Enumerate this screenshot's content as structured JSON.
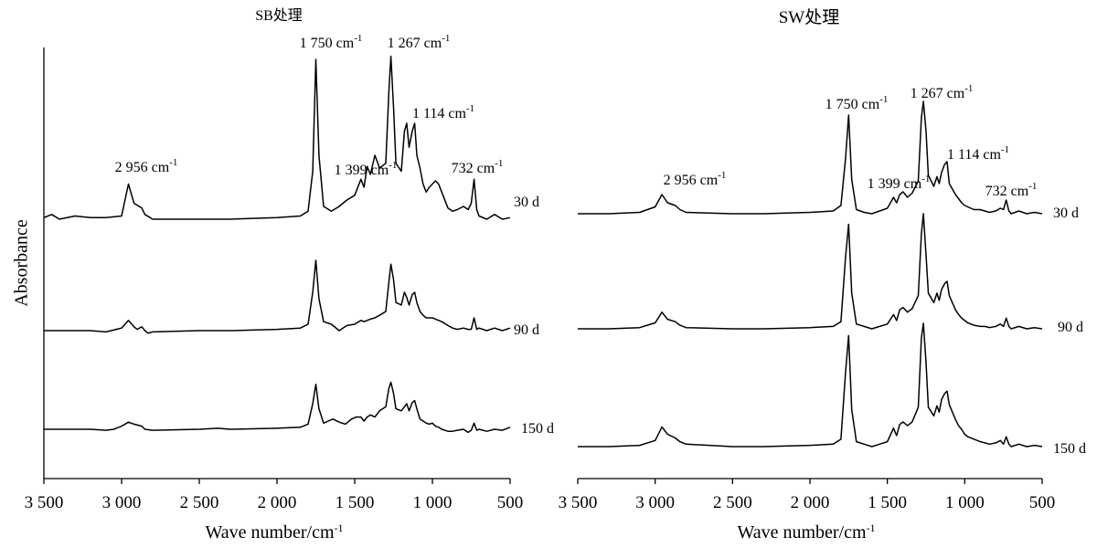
{
  "figure": {
    "ylabel": "Absorbance"
  },
  "chart_data": [
    {
      "type": "line",
      "title": "SB处理",
      "xlabel": "Wave number/cm-1",
      "ylabel": "Absorbance",
      "xlim": [
        3500,
        500
      ],
      "x_reversed": true,
      "x_ticks": [
        {
          "v": 3500,
          "label": "3 500"
        },
        {
          "v": 3000,
          "label": "3 000"
        },
        {
          "v": 2500,
          "label": "2 500"
        },
        {
          "v": 2000,
          "label": "2 000"
        },
        {
          "v": 1500,
          "label": "1 500"
        },
        {
          "v": 1000,
          "label": "1 000"
        },
        {
          "v": 500,
          "label": "500"
        }
      ],
      "annotations": [
        {
          "text": "2 956 cm",
          "sup": "-1",
          "x": 2956,
          "series": "30 d"
        },
        {
          "text": "1 750 cm",
          "sup": "-1",
          "x": 1750,
          "series": "30 d"
        },
        {
          "text": "1 267 cm",
          "sup": "-1",
          "x": 1267,
          "series": "30 d"
        },
        {
          "text": "1 114 cm",
          "sup": "-1",
          "x": 1114,
          "series": "30 d"
        },
        {
          "text": "1 399 cm",
          "sup": "-1",
          "x": 1399,
          "series": "30 d"
        },
        {
          "text": "732 cm",
          "sup": "-1",
          "x": 732,
          "series": "30 d"
        }
      ],
      "series": [
        {
          "name": "30 d",
          "x": [
            3500,
            3450,
            3400,
            3300,
            3200,
            3100,
            3000,
            2956,
            2920,
            2870,
            2850,
            2800,
            2500,
            2300,
            2000,
            1850,
            1800,
            1770,
            1750,
            1730,
            1700,
            1650,
            1600,
            1550,
            1500,
            1460,
            1440,
            1420,
            1399,
            1370,
            1340,
            1300,
            1280,
            1267,
            1250,
            1235,
            1200,
            1180,
            1165,
            1150,
            1130,
            1114,
            1100,
            1080,
            1060,
            1040,
            1020,
            1000,
            980,
            960,
            940,
            900,
            870,
            840,
            800,
            770,
            750,
            732,
            715,
            700,
            650,
            600,
            550,
            500
          ],
          "y": [
            0.01,
            0.03,
            0.0,
            0.02,
            0.01,
            0.01,
            0.02,
            0.22,
            0.1,
            0.07,
            0.03,
            0.0,
            0.0,
            0.0,
            0.01,
            0.02,
            0.05,
            0.3,
            1.0,
            0.4,
            0.08,
            0.05,
            0.08,
            0.12,
            0.15,
            0.25,
            0.2,
            0.33,
            0.28,
            0.4,
            0.32,
            0.35,
            0.8,
            1.02,
            0.7,
            0.35,
            0.3,
            0.55,
            0.6,
            0.45,
            0.55,
            0.6,
            0.4,
            0.32,
            0.22,
            0.17,
            0.2,
            0.22,
            0.24,
            0.22,
            0.17,
            0.07,
            0.05,
            0.06,
            0.08,
            0.06,
            0.1,
            0.25,
            0.06,
            0.02,
            0.0,
            0.03,
            0.0,
            0.01
          ]
        },
        {
          "name": "90 d",
          "x": [
            3500,
            3400,
            3300,
            3200,
            3100,
            3000,
            2956,
            2920,
            2900,
            2870,
            2850,
            2830,
            2800,
            2500,
            2300,
            2000,
            1850,
            1800,
            1770,
            1750,
            1730,
            1700,
            1650,
            1600,
            1550,
            1500,
            1460,
            1440,
            1420,
            1399,
            1370,
            1340,
            1300,
            1280,
            1267,
            1250,
            1235,
            1200,
            1180,
            1165,
            1150,
            1130,
            1114,
            1100,
            1080,
            1060,
            1040,
            1020,
            1000,
            980,
            960,
            940,
            900,
            870,
            840,
            800,
            770,
            750,
            732,
            715,
            700,
            650,
            600,
            550,
            500
          ],
          "y": [
            0.0,
            0.0,
            0.0,
            0.0,
            -0.01,
            0.02,
            0.08,
            0.03,
            0.01,
            0.03,
            0.0,
            -0.02,
            -0.01,
            0.0,
            0.0,
            0.01,
            0.02,
            0.05,
            0.3,
            0.55,
            0.25,
            0.07,
            0.05,
            0.0,
            0.04,
            0.05,
            0.08,
            0.07,
            0.08,
            0.09,
            0.1,
            0.12,
            0.15,
            0.38,
            0.52,
            0.4,
            0.22,
            0.2,
            0.3,
            0.26,
            0.2,
            0.28,
            0.3,
            0.22,
            0.15,
            0.12,
            0.1,
            0.1,
            0.1,
            0.09,
            0.08,
            0.07,
            0.04,
            0.02,
            0.01,
            0.02,
            0.01,
            0.01,
            0.1,
            0.01,
            0.02,
            0.0,
            0.02,
            0.0,
            0.02
          ]
        },
        {
          "name": "150 d",
          "x": [
            3500,
            3400,
            3300,
            3200,
            3100,
            3050,
            3000,
            2956,
            2920,
            2870,
            2850,
            2800,
            2500,
            2380,
            2300,
            2000,
            1850,
            1800,
            1770,
            1750,
            1730,
            1700,
            1670,
            1640,
            1600,
            1560,
            1520,
            1490,
            1460,
            1440,
            1420,
            1399,
            1370,
            1340,
            1300,
            1280,
            1267,
            1250,
            1235,
            1200,
            1180,
            1165,
            1150,
            1130,
            1114,
            1100,
            1080,
            1060,
            1040,
            1020,
            1000,
            980,
            960,
            940,
            900,
            870,
            840,
            800,
            770,
            750,
            732,
            715,
            700,
            650,
            600,
            550,
            500
          ],
          "y": [
            0.0,
            0.0,
            0.0,
            0.0,
            -0.01,
            0.0,
            0.03,
            0.07,
            0.05,
            0.03,
            0.0,
            -0.01,
            0.0,
            0.01,
            0.0,
            0.01,
            0.02,
            0.05,
            0.25,
            0.44,
            0.2,
            0.06,
            0.08,
            0.1,
            0.07,
            0.05,
            0.1,
            0.12,
            0.12,
            0.08,
            0.12,
            0.14,
            0.12,
            0.18,
            0.22,
            0.4,
            0.46,
            0.35,
            0.2,
            0.18,
            0.22,
            0.25,
            0.18,
            0.26,
            0.28,
            0.2,
            0.1,
            0.08,
            0.06,
            0.05,
            0.06,
            0.03,
            0.02,
            0.0,
            -0.02,
            -0.02,
            -0.01,
            0.0,
            -0.03,
            -0.01,
            0.06,
            -0.01,
            0.0,
            -0.02,
            0.0,
            -0.01,
            0.02
          ]
        }
      ]
    },
    {
      "type": "line",
      "title": "SW处理",
      "xlabel": "Wave number/cm-1",
      "xlim": [
        3500,
        500
      ],
      "x_reversed": true,
      "x_ticks": [
        {
          "v": 3500,
          "label": "3 500"
        },
        {
          "v": 3000,
          "label": "3 000"
        },
        {
          "v": 2500,
          "label": "2 500"
        },
        {
          "v": 2000,
          "label": "2 000"
        },
        {
          "v": 1500,
          "label": "1 500"
        },
        {
          "v": 1000,
          "label": "1 000"
        },
        {
          "v": 500,
          "label": "500"
        }
      ],
      "annotations": [
        {
          "text": "2 956 cm",
          "sup": "-1",
          "x": 2956,
          "series": "30 d"
        },
        {
          "text": "1 750 cm",
          "sup": "-1",
          "x": 1750,
          "series": "30 d"
        },
        {
          "text": "1 267 cm",
          "sup": "-1",
          "x": 1267,
          "series": "30 d"
        },
        {
          "text": "1 114 cm",
          "sup": "-1",
          "x": 1114,
          "series": "30 d"
        },
        {
          "text": "1 399 cm",
          "sup": "-1",
          "x": 1399,
          "series": "30 d"
        },
        {
          "text": "732 cm",
          "sup": "-1",
          "x": 732,
          "series": "30 d"
        }
      ],
      "series": [
        {
          "name": "30 d",
          "x": [
            3500,
            3300,
            3100,
            3000,
            2956,
            2920,
            2870,
            2840,
            2800,
            2500,
            2300,
            2000,
            1850,
            1800,
            1770,
            1750,
            1730,
            1700,
            1650,
            1600,
            1550,
            1500,
            1460,
            1440,
            1420,
            1399,
            1370,
            1340,
            1300,
            1280,
            1267,
            1250,
            1235,
            1200,
            1180,
            1165,
            1150,
            1130,
            1114,
            1100,
            1080,
            1060,
            1040,
            1020,
            1000,
            980,
            960,
            940,
            900,
            870,
            840,
            800,
            770,
            750,
            732,
            715,
            700,
            650,
            600,
            550,
            500
          ],
          "y": [
            0.0,
            0.0,
            0.01,
            0.05,
            0.14,
            0.08,
            0.06,
            0.03,
            0.01,
            0.0,
            0.0,
            0.01,
            0.02,
            0.06,
            0.4,
            0.72,
            0.25,
            0.03,
            0.01,
            0.0,
            0.02,
            0.04,
            0.12,
            0.08,
            0.14,
            0.16,
            0.12,
            0.15,
            0.24,
            0.7,
            0.82,
            0.6,
            0.28,
            0.2,
            0.27,
            0.22,
            0.3,
            0.36,
            0.38,
            0.22,
            0.18,
            0.14,
            0.11,
            0.08,
            0.06,
            0.05,
            0.04,
            0.03,
            0.03,
            0.02,
            0.01,
            0.02,
            0.04,
            0.03,
            0.1,
            0.02,
            0.0,
            0.02,
            0.0,
            0.01,
            0.0
          ]
        },
        {
          "name": "90 d",
          "x": [
            3500,
            3300,
            3100,
            3000,
            2956,
            2920,
            2870,
            2840,
            2800,
            2500,
            2300,
            2000,
            1850,
            1800,
            1770,
            1750,
            1730,
            1700,
            1650,
            1600,
            1550,
            1500,
            1460,
            1440,
            1420,
            1399,
            1370,
            1340,
            1300,
            1280,
            1267,
            1250,
            1235,
            1200,
            1180,
            1165,
            1150,
            1130,
            1114,
            1100,
            1080,
            1060,
            1040,
            1020,
            1000,
            980,
            960,
            940,
            900,
            870,
            840,
            800,
            770,
            750,
            732,
            715,
            700,
            650,
            600,
            550,
            500
          ],
          "y": [
            0.0,
            0.0,
            0.01,
            0.05,
            0.14,
            0.08,
            0.06,
            0.03,
            0.01,
            0.0,
            0.0,
            0.01,
            0.02,
            0.06,
            0.6,
            0.88,
            0.3,
            0.04,
            0.02,
            0.0,
            0.02,
            0.04,
            0.12,
            0.07,
            0.16,
            0.18,
            0.14,
            0.17,
            0.28,
            0.8,
            0.97,
            0.62,
            0.3,
            0.22,
            0.3,
            0.24,
            0.33,
            0.38,
            0.4,
            0.28,
            0.22,
            0.16,
            0.12,
            0.09,
            0.07,
            0.05,
            0.04,
            0.03,
            0.02,
            0.02,
            0.01,
            0.02,
            0.04,
            0.02,
            0.09,
            0.02,
            0.0,
            0.02,
            0.0,
            0.01,
            0.0
          ]
        },
        {
          "name": "150 d",
          "x": [
            3500,
            3300,
            3100,
            3000,
            2956,
            2920,
            2870,
            2840,
            2800,
            2500,
            2300,
            2000,
            1850,
            1800,
            1770,
            1750,
            1730,
            1700,
            1650,
            1600,
            1550,
            1500,
            1460,
            1440,
            1420,
            1399,
            1370,
            1340,
            1300,
            1280,
            1267,
            1250,
            1235,
            1200,
            1180,
            1165,
            1150,
            1130,
            1114,
            1100,
            1080,
            1060,
            1040,
            1020,
            1000,
            980,
            960,
            940,
            900,
            870,
            840,
            800,
            770,
            750,
            732,
            715,
            700,
            650,
            600,
            550,
            500
          ],
          "y": [
            0.0,
            0.0,
            0.01,
            0.05,
            0.16,
            0.1,
            0.07,
            0.04,
            0.02,
            0.0,
            0.0,
            0.01,
            0.02,
            0.06,
            0.6,
            0.9,
            0.3,
            0.04,
            0.02,
            0.0,
            0.02,
            0.04,
            0.15,
            0.09,
            0.18,
            0.2,
            0.17,
            0.2,
            0.32,
            0.88,
            1.0,
            0.68,
            0.32,
            0.25,
            0.33,
            0.28,
            0.38,
            0.43,
            0.45,
            0.34,
            0.28,
            0.22,
            0.17,
            0.14,
            0.1,
            0.08,
            0.07,
            0.06,
            0.04,
            0.03,
            0.02,
            0.03,
            0.05,
            0.02,
            0.08,
            0.02,
            0.0,
            0.02,
            0.0,
            0.01,
            0.0
          ]
        }
      ]
    }
  ]
}
